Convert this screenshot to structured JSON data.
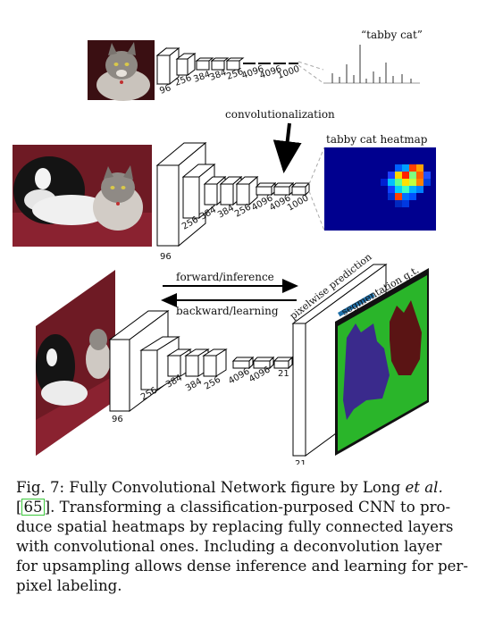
{
  "figure": {
    "top_row": {
      "output_label": "“tabby cat”",
      "layer_labels": [
        "96",
        "256",
        "384",
        "384",
        "256",
        "4096",
        "4096",
        "1000"
      ]
    },
    "convolutionalization_label": "convolutionalization",
    "middle_row": {
      "heatmap_title": "tabby cat heatmap",
      "layer_labels": [
        "96",
        "256",
        "384",
        "384",
        "256",
        "4096",
        "4096",
        "1000"
      ]
    },
    "bottom_row": {
      "forward_label": "forward/inference",
      "backward_label": "backward/learning",
      "prediction_label": "pixelwise prediction",
      "gt_label": "segmentation g.t.",
      "layer_labels": [
        "96",
        "256",
        "384",
        "384",
        "256",
        "4096",
        "4096",
        "21"
      ],
      "output_depth_label": "21"
    },
    "colors": {
      "heatmap_background": "#00008f",
      "segmentation_background": "#111111",
      "segmentation_dog": "#3a2a8c",
      "segmentation_cat": "#5a1414",
      "segmentation_border": "#2ab52a"
    }
  },
  "caption": {
    "lines": [
      {
        "prefix": "Fig. 7: Fully Convolutional Network figure by Long ",
        "emph": "et al.",
        "suffix": ""
      },
      {
        "ref": "65",
        "text": ". Transforming a classification-purposed CNN to pro-"
      },
      {
        "text": "duce spatial heatmaps by replacing fully connected layers"
      },
      {
        "text": "with convolutional ones. Including a deconvolution layer"
      },
      {
        "text": "for upsampling allows dense inference and learning for per-"
      },
      {
        "text": "pixel labeling."
      }
    ]
  }
}
